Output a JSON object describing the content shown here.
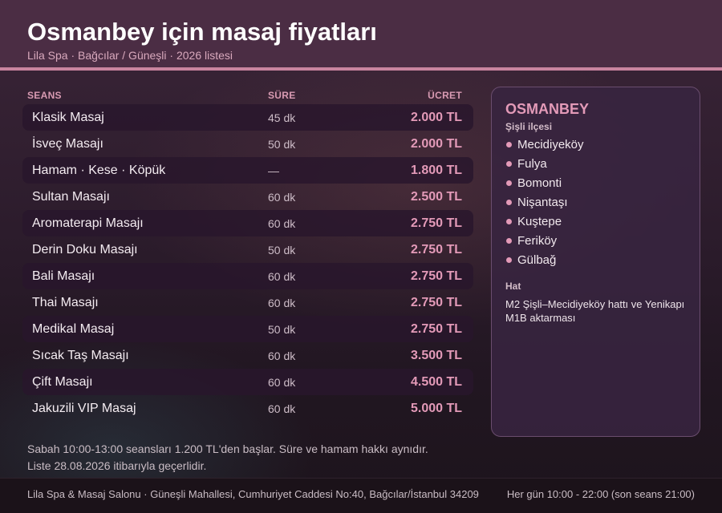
{
  "header": {
    "title": "Osmanbey için masaj fiyatları",
    "subtitle": "Lila Spa · Bağcılar / Güneşli · 2026 listesi"
  },
  "table": {
    "columns": [
      "SEANS",
      "SÜRE",
      "ÜCRET"
    ],
    "rows": [
      {
        "name": "Klasik Masaj",
        "duration": "45 dk",
        "price": "2.000 TL"
      },
      {
        "name": "İsveç Masajı",
        "duration": "50 dk",
        "price": "2.000 TL"
      },
      {
        "name": "Hamam · Kese · Köpük",
        "duration": "—",
        "price": "1.800 TL"
      },
      {
        "name": "Sultan Masajı",
        "duration": "60 dk",
        "price": "2.500 TL"
      },
      {
        "name": "Aromaterapi Masajı",
        "duration": "60 dk",
        "price": "2.750 TL"
      },
      {
        "name": "Derin Doku Masajı",
        "duration": "50 dk",
        "price": "2.750 TL"
      },
      {
        "name": "Bali Masajı",
        "duration": "60 dk",
        "price": "2.750 TL"
      },
      {
        "name": "Thai Masajı",
        "duration": "60 dk",
        "price": "2.750 TL"
      },
      {
        "name": "Medikal Masaj",
        "duration": "50 dk",
        "price": "2.750 TL"
      },
      {
        "name": "Sıcak Taş Masajı",
        "duration": "60 dk",
        "price": "3.500 TL"
      },
      {
        "name": "Çift Masajı",
        "duration": "60 dk",
        "price": "4.500 TL"
      },
      {
        "name": "Jakuzili VIP Masaj",
        "duration": "60 dk",
        "price": "5.000 TL"
      }
    ]
  },
  "notes": [
    "Sabah 10:00-13:00 seansları 1.200 TL'den başlar. Süre ve hamam hakkı aynıdır.",
    "Liste 28.08.2026 itibarıyla geçerlidir."
  ],
  "sidebar": {
    "district": "OSMANBEY",
    "sub": "Şişli ilçesi",
    "neighborhoods": [
      "Mecidiyeköy",
      "Fulya",
      "Bomonti",
      "Nişantaşı",
      "Kuştepe",
      "Feriköy",
      "Gülbağ"
    ],
    "hat_title": "Hat",
    "hat_text": "M2 Şişli–Mecidiyeköy hattı ve Yenikapı M1B aktarması"
  },
  "footer": {
    "address": "Lila Spa & Masaj Salonu · Güneşli Mahallesi, Cumhuriyet Caddesi No:40, Bağcılar/İstanbul 34209",
    "hours": "Her gün 10:00 - 22:00 (son seans 21:00)"
  },
  "colors": {
    "accent": "#e39ab8",
    "header": "#4b2d44",
    "border": "#c9849f"
  }
}
